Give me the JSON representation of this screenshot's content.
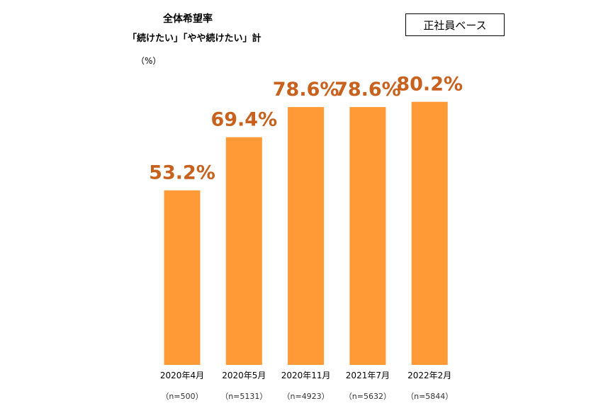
{
  "header": {
    "title": "全体希望率",
    "subtitle": "「続けたい」「やや続けたい」計",
    "unit": "（%）",
    "badge": "正社員ベース"
  },
  "chart_data": {
    "type": "bar",
    "title": "全体希望率",
    "subtitle": "「続けたい」「やや続けたい」計",
    "ylabel": "（%）",
    "categories": [
      "2020年4月",
      "2020年5月",
      "2020年11月",
      "2021年7月",
      "2022年2月"
    ],
    "sample_sizes": [
      "（n=500）",
      "（n=5131）",
      "（n=4923）",
      "（n=5632）",
      "（n=5844）"
    ],
    "values": [
      53.2,
      69.4,
      78.6,
      78.6,
      80.2
    ],
    "value_labels": [
      "53.2%",
      "69.4%",
      "78.6%",
      "78.6%",
      "80.2%"
    ],
    "ylim": [
      0,
      100
    ],
    "grid": false,
    "bar_color": "#FF9A36",
    "label_color": "#C8611E"
  }
}
